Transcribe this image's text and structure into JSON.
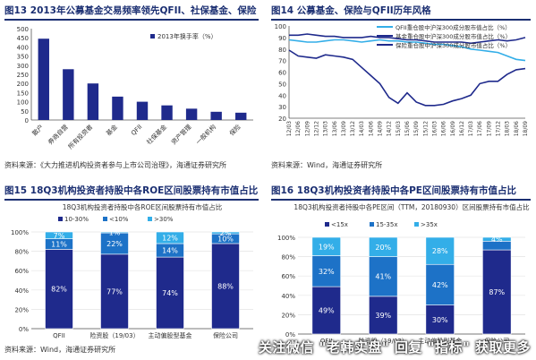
{
  "panels": [
    {
      "title": "图13 2013年公募基金交易频率领先QFII、社保基金、保险",
      "source": "资料来源：《大力推进机构投资者参与上市公司治理》，海通证券研究所"
    },
    {
      "title": "图14 公募基金、保险与QFII历年风格",
      "source": "资料来源：Wind，海通证券研究所"
    },
    {
      "title": "图15 18Q3机构投资者持股中各ROE区间股票持有市值占比",
      "source": "资料来源：Wind，海通证券研究所"
    },
    {
      "title": "图16 18Q3机构投资者持股中各PE区间股票持有市值占比",
      "source": ""
    }
  ],
  "watermark": "关注微信 \"老韩实盘\" 回复 \"指标\" 获取更多",
  "chart_data": [
    {
      "type": "bar",
      "title": "",
      "categories": [
        "散户",
        "券商自营",
        "所有投资者",
        "基金",
        "QFII",
        "社保基金",
        "资产管理",
        "一般机构",
        "保险"
      ],
      "series": [
        {
          "name": "2013年换手率（%）",
          "values": [
            445,
            278,
            200,
            128,
            100,
            80,
            62,
            45,
            40
          ]
        }
      ],
      "ylim": [
        0,
        500
      ],
      "yticks": [
        "0",
        "50",
        "100",
        "150",
        "200",
        "250",
        "300",
        "350",
        "400",
        "450",
        "500"
      ],
      "legend": "top-right",
      "color": "#1f2a8c"
    },
    {
      "type": "line",
      "title": "",
      "x": [
        "12/03",
        "12/06",
        "12/09",
        "12/12",
        "13/03",
        "13/06",
        "13/09",
        "13/12",
        "14/03",
        "14/06",
        "14/09",
        "14/12",
        "15/03",
        "15/06",
        "15/09",
        "15/12",
        "16/03",
        "16/06",
        "16/09",
        "16/12",
        "17/03",
        "17/06",
        "17/09",
        "17/12",
        "18/03",
        "18/06",
        "18/09"
      ],
      "series": [
        {
          "name": "QFII重仓股中沪深300成分股市值占比（%）",
          "color": "#33aee8",
          "values": [
            88,
            87,
            86,
            86,
            87,
            88,
            88,
            87,
            86,
            87,
            88,
            87,
            87,
            86,
            86,
            85,
            84,
            84,
            83,
            82,
            80,
            79,
            78,
            77,
            74,
            71,
            70
          ]
        },
        {
          "name": "基金重仓股中沪深300成分股市值占比（%）",
          "color": "#1f2a8c",
          "values": [
            79,
            74,
            73,
            72,
            75,
            74,
            73,
            71,
            64,
            57,
            50,
            38,
            33,
            42,
            34,
            31,
            31,
            32,
            35,
            37,
            40,
            50,
            52,
            52,
            58,
            62,
            63
          ]
        },
        {
          "name": "保险重仓股中沪深300成分股市值占比（%）",
          "color": "#1f2a8c",
          "values": [
            92,
            92,
            93,
            92,
            91,
            91,
            90,
            90,
            90,
            91,
            90,
            90,
            89,
            88,
            88,
            87,
            86,
            86,
            86,
            86,
            85,
            86,
            87,
            88,
            87,
            88,
            90
          ]
        }
      ],
      "ylim": [
        20,
        100
      ],
      "yticks": [
        "20",
        "30",
        "40",
        "50",
        "60",
        "70",
        "80",
        "90",
        "100"
      ],
      "legend": "top-right"
    },
    {
      "type": "bar",
      "title": "18Q3机构投资者持股中各ROE区间股票持有市值占比",
      "categories": [
        "QFII",
        "险资股（19/03）",
        "主动偏股型基金",
        "保险公司"
      ],
      "series": [
        {
          "name": "10-30%",
          "color": "#1f2a8c",
          "values": [
            82,
            77,
            74,
            88
          ],
          "labels": [
            "82%",
            "77%",
            "74%",
            "88%"
          ]
        },
        {
          "name": "<10%",
          "color": "#1d72c7",
          "values": [
            11,
            22,
            14,
            10
          ],
          "labels": [
            "11%",
            "22%",
            "14%",
            "10%"
          ]
        },
        {
          "name": ">30%",
          "color": "#33aee8",
          "values": [
            7,
            1,
            12,
            2
          ],
          "labels": [
            "7%",
            "1%",
            "12%",
            "2%"
          ]
        }
      ],
      "ylim": [
        0,
        100
      ],
      "yticks": [
        "0%",
        "20%",
        "40%",
        "60%",
        "80%",
        "100%"
      ],
      "legend": "top"
    },
    {
      "type": "bar",
      "title": "18Q3机构投资者持股中各PE区间（TTM，20180930）区间股票持有市值占比",
      "categories": [
        "QFII",
        "险资股（19/03）",
        "主动偏股型基金",
        "保险公司"
      ],
      "series": [
        {
          "name": "<15x",
          "color": "#1f2a8c",
          "values": [
            49,
            39,
            30,
            87
          ],
          "labels": [
            "49%",
            "39%",
            "30%",
            "87%"
          ]
        },
        {
          "name": "15-35x",
          "color": "#1d72c7",
          "values": [
            32,
            41,
            42,
            9
          ],
          "labels": [
            "32%",
            "41%",
            "42%",
            ""
          ]
        },
        {
          "name": ">35x",
          "color": "#33aee8",
          "values": [
            19,
            20,
            28,
            4
          ],
          "labels": [
            "19%",
            "20%",
            "28%",
            "4%"
          ]
        }
      ],
      "ylim": [
        0,
        100
      ],
      "yticks": [
        "0%",
        "20%",
        "40%",
        "60%",
        "80%",
        "100%"
      ],
      "legend": "top"
    }
  ]
}
